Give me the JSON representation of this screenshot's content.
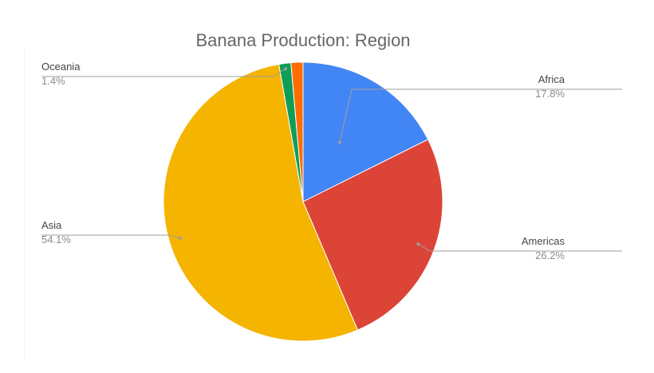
{
  "chart_data": {
    "type": "pie",
    "title": "Banana Production: Region",
    "slices": [
      {
        "name": "Africa",
        "value": 17.8,
        "label": "17.8%",
        "color": "#4285f4"
      },
      {
        "name": "Americas",
        "value": 26.2,
        "label": "26.2%",
        "color": "#db4437"
      },
      {
        "name": "Asia",
        "value": 54.1,
        "label": "54.1%",
        "color": "#f4b400"
      },
      {
        "name": "Oceania",
        "value": 1.4,
        "label": "1.4%",
        "color": "#0f9d58"
      },
      {
        "name": "",
        "value": 1.4,
        "label": "",
        "color": "#ff6d00"
      }
    ],
    "start_angle": 0,
    "direction": "clockwise",
    "legend": "none",
    "labels": "outside with leader lines"
  }
}
